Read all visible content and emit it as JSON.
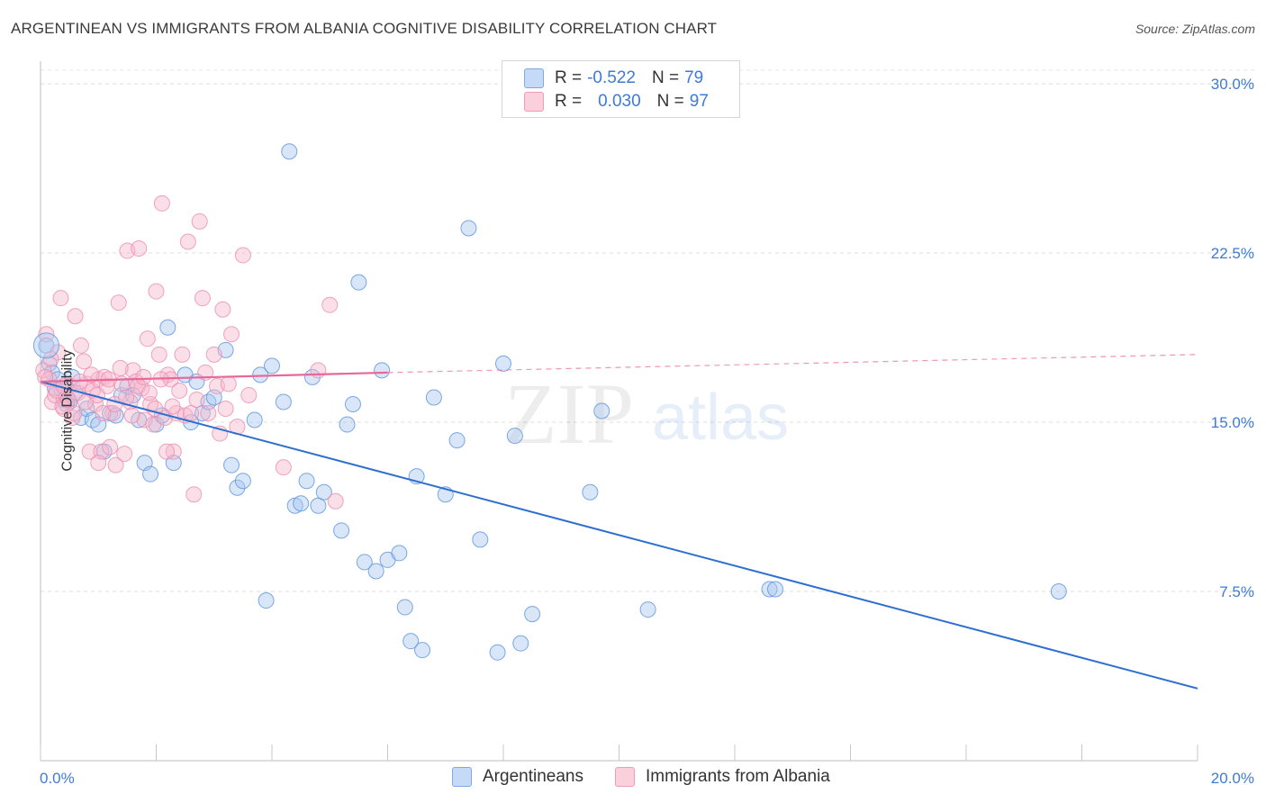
{
  "title": "ARGENTINEAN VS IMMIGRANTS FROM ALBANIA COGNITIVE DISABILITY CORRELATION CHART",
  "source": "Source: ZipAtlas.com",
  "watermark": {
    "zip": "ZIP",
    "atlas": "atlas"
  },
  "legend_top": [
    {
      "r_label": "R =",
      "r_value": "-0.522",
      "n_label": "N =",
      "n_value": "79",
      "color": "#a9c8f0"
    },
    {
      "r_label": "R =",
      "r_value": "0.030",
      "n_label": "N =",
      "n_value": "97",
      "color": "#f6b8cb"
    }
  ],
  "legend_bottom": [
    {
      "label": "Argentineans",
      "color": "#a9c8f0"
    },
    {
      "label": "Immigrants from Albania",
      "color": "#f6b8cb"
    }
  ],
  "chart_data": {
    "type": "scatter",
    "title": "ARGENTINEAN VS IMMIGRANTS FROM ALBANIA COGNITIVE DISABILITY CORRELATION CHART",
    "xlabel": "",
    "ylabel": "Cognitive Disability",
    "xlim": [
      0,
      20
    ],
    "ylim": [
      0,
      31
    ],
    "x_ticks": [
      "0.0%",
      "20.0%"
    ],
    "y_ticks": [
      {
        "value": 7.5,
        "label": "7.5%"
      },
      {
        "value": 15.0,
        "label": "15.0%"
      },
      {
        "value": 22.5,
        "label": "22.5%"
      },
      {
        "value": 30.0,
        "label": "30.0%"
      }
    ],
    "grid": true,
    "legend_position": "top-center",
    "series": [
      {
        "name": "Argentineans",
        "color": "#5b93de",
        "fill": "#a9c8f0",
        "trend": {
          "x": [
            0.0,
            20.0
          ],
          "y": [
            16.8,
            3.2
          ],
          "style": "solid",
          "color": "#2d6fd1"
        },
        "points": [
          [
            0.1,
            18.4
          ],
          [
            0.15,
            17.6
          ],
          [
            0.2,
            17.2
          ],
          [
            0.3,
            16.9
          ],
          [
            0.35,
            16.5
          ],
          [
            0.4,
            16.0
          ],
          [
            0.5,
            15.9
          ],
          [
            0.55,
            17.0
          ],
          [
            0.6,
            16.3
          ],
          [
            0.7,
            15.2
          ],
          [
            0.8,
            15.6
          ],
          [
            0.9,
            15.1
          ],
          [
            1.0,
            14.9
          ],
          [
            1.1,
            13.7
          ],
          [
            1.2,
            15.4
          ],
          [
            1.3,
            15.3
          ],
          [
            1.4,
            16.2
          ],
          [
            1.5,
            16.6
          ],
          [
            1.7,
            15.1
          ],
          [
            1.8,
            13.2
          ],
          [
            1.9,
            12.7
          ],
          [
            2.0,
            14.9
          ],
          [
            2.1,
            15.3
          ],
          [
            2.2,
            19.2
          ],
          [
            2.3,
            13.2
          ],
          [
            2.5,
            17.1
          ],
          [
            2.6,
            15.0
          ],
          [
            2.7,
            16.8
          ],
          [
            2.8,
            15.4
          ],
          [
            2.9,
            15.9
          ],
          [
            3.0,
            16.1
          ],
          [
            3.2,
            18.2
          ],
          [
            3.3,
            13.1
          ],
          [
            3.4,
            12.1
          ],
          [
            3.5,
            12.4
          ],
          [
            3.7,
            15.1
          ],
          [
            3.8,
            17.1
          ],
          [
            3.9,
            7.1
          ],
          [
            4.0,
            17.5
          ],
          [
            4.2,
            15.9
          ],
          [
            4.3,
            27.0
          ],
          [
            4.4,
            11.3
          ],
          [
            4.5,
            11.4
          ],
          [
            4.6,
            12.4
          ],
          [
            4.7,
            17.0
          ],
          [
            4.8,
            11.3
          ],
          [
            4.9,
            11.9
          ],
          [
            5.2,
            10.2
          ],
          [
            5.3,
            14.9
          ],
          [
            5.4,
            15.8
          ],
          [
            5.5,
            21.2
          ],
          [
            5.6,
            8.8
          ],
          [
            5.8,
            8.4
          ],
          [
            5.9,
            17.3
          ],
          [
            6.0,
            8.9
          ],
          [
            6.2,
            9.2
          ],
          [
            6.3,
            6.8
          ],
          [
            6.4,
            5.3
          ],
          [
            6.5,
            12.6
          ],
          [
            6.6,
            4.9
          ],
          [
            6.8,
            16.1
          ],
          [
            7.0,
            11.8
          ],
          [
            7.2,
            14.2
          ],
          [
            7.4,
            23.6
          ],
          [
            7.6,
            9.8
          ],
          [
            7.9,
            4.8
          ],
          [
            8.0,
            17.6
          ],
          [
            8.2,
            14.4
          ],
          [
            8.3,
            5.2
          ],
          [
            8.5,
            6.5
          ],
          [
            9.5,
            11.9
          ],
          [
            9.7,
            15.5
          ],
          [
            10.5,
            6.7
          ],
          [
            12.6,
            7.6
          ],
          [
            12.7,
            7.6
          ],
          [
            17.6,
            7.5
          ],
          [
            0.25,
            16.5
          ],
          [
            0.45,
            15.8
          ],
          [
            1.6,
            16.2
          ]
        ]
      },
      {
        "name": "Immigrants from Albania",
        "color": "#ec8db0",
        "fill": "#f6b8cb",
        "trend": {
          "x": [
            0.0,
            6.0
          ],
          "y": [
            16.8,
            17.2
          ],
          "style": "solid",
          "dashed_to": [
            20.0,
            18.0
          ],
          "color": "#e8689a"
        },
        "points": [
          [
            0.05,
            17.3
          ],
          [
            0.1,
            18.9
          ],
          [
            0.15,
            16.9
          ],
          [
            0.2,
            15.9
          ],
          [
            0.25,
            16.2
          ],
          [
            0.3,
            18.1
          ],
          [
            0.35,
            20.5
          ],
          [
            0.4,
            15.6
          ],
          [
            0.45,
            16.1
          ],
          [
            0.5,
            16.6
          ],
          [
            0.55,
            15.2
          ],
          [
            0.6,
            19.7
          ],
          [
            0.65,
            16.3
          ],
          [
            0.7,
            18.4
          ],
          [
            0.75,
            17.7
          ],
          [
            0.8,
            16.7
          ],
          [
            0.85,
            13.7
          ],
          [
            0.9,
            16.4
          ],
          [
            0.95,
            15.8
          ],
          [
            1.0,
            16.9
          ],
          [
            1.05,
            13.7
          ],
          [
            1.1,
            17.0
          ],
          [
            1.15,
            16.6
          ],
          [
            1.2,
            13.9
          ],
          [
            1.25,
            15.4
          ],
          [
            1.3,
            13.1
          ],
          [
            1.35,
            20.3
          ],
          [
            1.4,
            16.7
          ],
          [
            1.45,
            13.6
          ],
          [
            1.5,
            22.6
          ],
          [
            1.55,
            15.9
          ],
          [
            1.6,
            17.3
          ],
          [
            1.65,
            16.8
          ],
          [
            1.7,
            22.7
          ],
          [
            1.75,
            16.5
          ],
          [
            1.8,
            15.1
          ],
          [
            1.85,
            18.7
          ],
          [
            1.9,
            15.8
          ],
          [
            1.95,
            14.9
          ],
          [
            2.0,
            20.8
          ],
          [
            2.05,
            18.0
          ],
          [
            2.1,
            24.7
          ],
          [
            2.15,
            15.2
          ],
          [
            2.2,
            17.1
          ],
          [
            2.25,
            16.9
          ],
          [
            2.3,
            13.7
          ],
          [
            2.35,
            15.4
          ],
          [
            2.4,
            16.4
          ],
          [
            2.45,
            18.0
          ],
          [
            2.5,
            15.3
          ],
          [
            2.55,
            23.0
          ],
          [
            2.6,
            15.4
          ],
          [
            2.65,
            11.8
          ],
          [
            2.7,
            16.0
          ],
          [
            2.75,
            23.9
          ],
          [
            2.8,
            20.5
          ],
          [
            2.85,
            17.2
          ],
          [
            2.9,
            15.4
          ],
          [
            3.0,
            18.0
          ],
          [
            3.05,
            16.6
          ],
          [
            3.1,
            14.5
          ],
          [
            3.15,
            20.0
          ],
          [
            3.2,
            15.6
          ],
          [
            3.25,
            16.7
          ],
          [
            3.3,
            18.9
          ],
          [
            3.4,
            14.8
          ],
          [
            3.5,
            22.4
          ],
          [
            3.6,
            16.2
          ],
          [
            0.08,
            17.0
          ],
          [
            0.18,
            17.8
          ],
          [
            0.28,
            16.4
          ],
          [
            0.38,
            15.7
          ],
          [
            0.48,
            16.0
          ],
          [
            0.58,
            15.4
          ],
          [
            0.68,
            16.8
          ],
          [
            0.78,
            15.9
          ],
          [
            0.88,
            17.1
          ],
          [
            0.98,
            16.2
          ],
          [
            1.08,
            15.4
          ],
          [
            1.18,
            16.9
          ],
          [
            1.28,
            15.8
          ],
          [
            1.38,
            17.4
          ],
          [
            1.48,
            16.1
          ],
          [
            1.58,
            15.3
          ],
          [
            1.68,
            16.6
          ],
          [
            1.78,
            17.0
          ],
          [
            1.88,
            16.3
          ],
          [
            1.98,
            15.6
          ],
          [
            2.08,
            16.9
          ],
          [
            2.18,
            13.7
          ],
          [
            2.28,
            15.7
          ],
          [
            4.2,
            13.0
          ],
          [
            5.1,
            11.5
          ],
          [
            5.0,
            20.2
          ],
          [
            4.8,
            17.3
          ],
          [
            1.0,
            13.2
          ],
          [
            0.4,
            16.6
          ]
        ]
      }
    ]
  }
}
